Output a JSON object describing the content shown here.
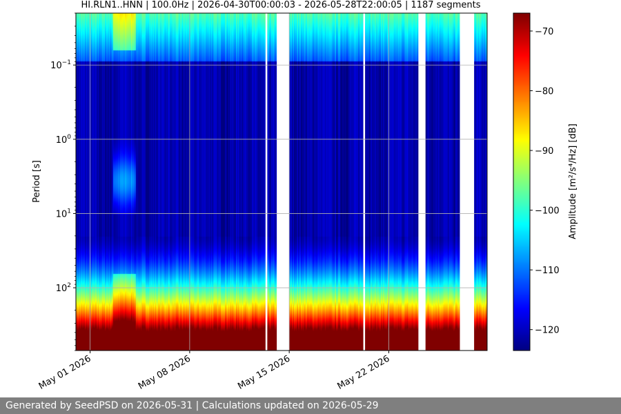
{
  "chart_data": {
    "type": "heatmap",
    "title": "HI.RLN1..HNN | 100.0Hz | 2026-04-30T00:00:03 - 2026-05-28T22:00:05 | 1187 segments",
    "ylabel": "Period [s]",
    "colorbar_label": "Amplitude [m²/s⁴/Hz] [dB]",
    "y_scale": "log",
    "y_inverted": true,
    "ylim": [
      0.02,
      700
    ],
    "y_ticks": [
      {
        "value": 0.1,
        "base": "10",
        "exp": "−1"
      },
      {
        "value": 1,
        "base": "10",
        "exp": "0"
      },
      {
        "value": 10,
        "base": "10",
        "exp": "1"
      },
      {
        "value": 100,
        "base": "10",
        "exp": "2"
      }
    ],
    "xlim": [
      "2026-04-30",
      "2026-05-28T22:00"
    ],
    "x_ticks": [
      {
        "date": "2026-05-01",
        "label": "May 01 2026"
      },
      {
        "date": "2026-05-08",
        "label": "May 08 2026"
      },
      {
        "date": "2026-05-15",
        "label": "May 15 2026"
      },
      {
        "date": "2026-05-22",
        "label": "May 22 2026"
      }
    ],
    "gaps": [
      [
        "2026-05-13T08:00",
        "2026-05-13T11:00"
      ],
      [
        "2026-05-14T03:00",
        "2026-05-15T00:00"
      ],
      [
        "2026-05-20T05:00",
        "2026-05-20T08:00"
      ],
      [
        "2026-05-24T02:00",
        "2026-05-24T14:00"
      ],
      [
        "2026-05-27T00:00",
        "2026-05-28T00:00"
      ]
    ],
    "colorbar": {
      "min": -123.5,
      "max": -67,
      "ticks": [
        -70,
        -80,
        -90,
        -100,
        -110,
        -120
      ],
      "colormap": "jet"
    },
    "grid": true
  },
  "footer": {
    "text": "Generated by SeedPSD on 2026-05-31 | Calculations updated on 2026-05-29"
  }
}
